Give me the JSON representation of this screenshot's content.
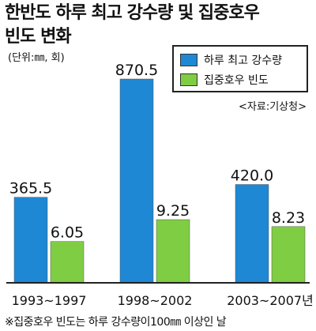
{
  "title_line1": "한반도 하루 최고 강수량 및 집중호우",
  "title_line2": "빈도 변화",
  "unit": "(단위:㎜, 회)",
  "source": "<자료:기상청>",
  "footnote": "※집중호우 빈도는 하루 강수량이100㎜ 이상인 날",
  "colors": {
    "series1": "#1e88d4",
    "series2": "#7fcd43"
  },
  "chart_data": {
    "type": "bar",
    "categories": [
      "1993~1997",
      "1998~2002",
      "2003~2007년"
    ],
    "series": [
      {
        "name": "하루 최고 강수량",
        "values": [
          365.5,
          870.5,
          420.0
        ],
        "labels": [
          "365.5",
          "870.5",
          "420.0"
        ]
      },
      {
        "name": "집중호우 빈도",
        "values": [
          6.05,
          9.25,
          8.23
        ],
        "labels": [
          "6.05",
          "9.25",
          "8.23"
        ]
      }
    ],
    "legend_position": "top-right",
    "grid": false
  }
}
